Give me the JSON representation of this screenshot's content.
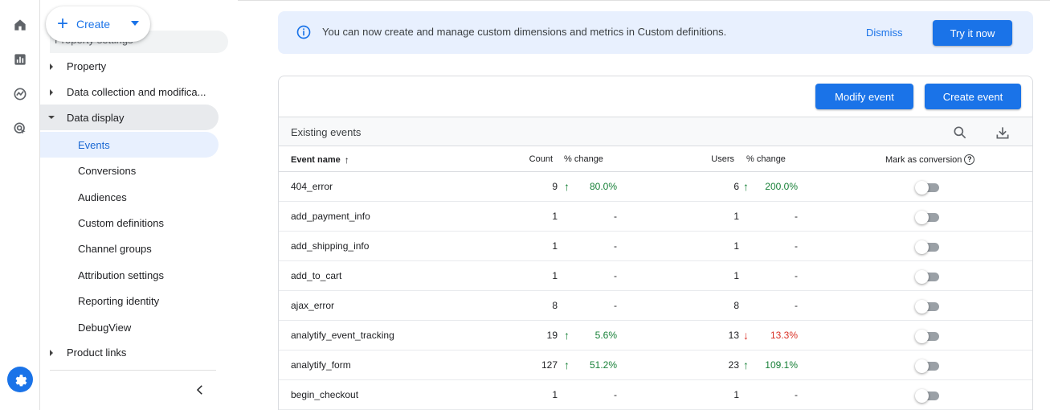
{
  "header": {
    "create_label": "Create",
    "clipped_section_label": "Property settings"
  },
  "sidebar": {
    "items": [
      {
        "label": "Property",
        "type": "parent",
        "expanded": false
      },
      {
        "label": "Data collection and modifica...",
        "type": "parent",
        "expanded": false
      },
      {
        "label": "Data display",
        "type": "parent",
        "expanded": true
      },
      {
        "label": "Events",
        "type": "child",
        "active": true
      },
      {
        "label": "Conversions",
        "type": "child"
      },
      {
        "label": "Audiences",
        "type": "child"
      },
      {
        "label": "Custom definitions",
        "type": "child"
      },
      {
        "label": "Channel groups",
        "type": "child"
      },
      {
        "label": "Attribution settings",
        "type": "child"
      },
      {
        "label": "Reporting identity",
        "type": "child"
      },
      {
        "label": "DebugView",
        "type": "child"
      },
      {
        "label": "Product links",
        "type": "parent",
        "expanded": false
      }
    ]
  },
  "rail": {
    "icons": [
      "home-icon",
      "reports-icon",
      "explore-icon",
      "advertising-icon",
      "settings-icon"
    ]
  },
  "banner": {
    "message": "You can now create and manage custom dimensions and metrics in Custom definitions.",
    "dismiss_label": "Dismiss",
    "try_label": "Try it now"
  },
  "events": {
    "modify_label": "Modify event",
    "create_label": "Create event",
    "title": "Existing events",
    "columns": {
      "name": "Event name",
      "count": "Count",
      "count_change": "% change",
      "users": "Users",
      "users_change": "% change",
      "conversion": "Mark as conversion"
    },
    "rows": [
      {
        "name": "404_error",
        "count": "9",
        "count_change": "80.0%",
        "count_dir": "up",
        "users": "6",
        "users_change": "200.0%",
        "users_dir": "up"
      },
      {
        "name": "add_payment_info",
        "count": "1",
        "count_change": "-",
        "count_dir": "none",
        "users": "1",
        "users_change": "-",
        "users_dir": "none"
      },
      {
        "name": "add_shipping_info",
        "count": "1",
        "count_change": "-",
        "count_dir": "none",
        "users": "1",
        "users_change": "-",
        "users_dir": "none"
      },
      {
        "name": "add_to_cart",
        "count": "1",
        "count_change": "-",
        "count_dir": "none",
        "users": "1",
        "users_change": "-",
        "users_dir": "none"
      },
      {
        "name": "ajax_error",
        "count": "8",
        "count_change": "-",
        "count_dir": "none",
        "users": "8",
        "users_change": "-",
        "users_dir": "none"
      },
      {
        "name": "analytify_event_tracking",
        "count": "19",
        "count_change": "5.6%",
        "count_dir": "up",
        "users": "13",
        "users_change": "13.3%",
        "users_dir": "down"
      },
      {
        "name": "analytify_form",
        "count": "127",
        "count_change": "51.2%",
        "count_dir": "up",
        "users": "23",
        "users_change": "109.1%",
        "users_dir": "up"
      },
      {
        "name": "begin_checkout",
        "count": "1",
        "count_change": "-",
        "count_dir": "none",
        "users": "1",
        "users_change": "-",
        "users_dir": "none"
      }
    ]
  },
  "colors": {
    "accent": "#1a73e8",
    "up": "#188038",
    "down": "#d93025",
    "banner_bg": "#e8f0fe"
  }
}
